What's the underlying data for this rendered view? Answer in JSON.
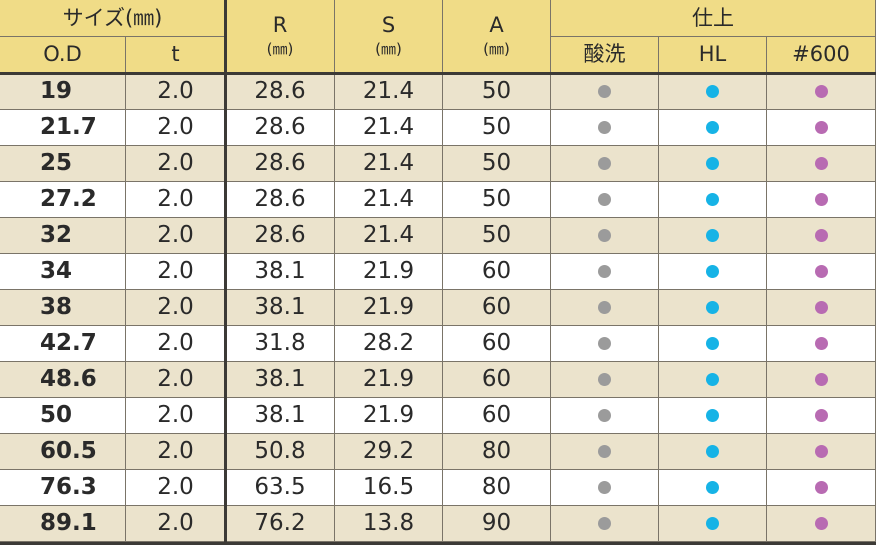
{
  "header": {
    "size_group": "サイズ(㎜)",
    "od": "O.D",
    "t": "t",
    "r": "R",
    "s": "S",
    "a": "A",
    "unit": "(㎜)",
    "finish_group": "仕上",
    "finish_acid": "酸洗",
    "finish_hl": "HL",
    "finish_600": "#600"
  },
  "colors": {
    "header_bg": "#f0dc87",
    "row_alt_bg": "#ebe3cc",
    "dot_acid": "#9b9b9b",
    "dot_hl": "#16b3e6",
    "dot_600": "#b86bb2"
  },
  "dot_icons": [
    "gray-dot-icon",
    "cyan-dot-icon",
    "purple-dot-icon"
  ],
  "rows": [
    {
      "od": "19",
      "t": "2.0",
      "r": "28.6",
      "s": "21.4",
      "a": "50"
    },
    {
      "od": "21.7",
      "t": "2.0",
      "r": "28.6",
      "s": "21.4",
      "a": "50"
    },
    {
      "od": "25",
      "t": "2.0",
      "r": "28.6",
      "s": "21.4",
      "a": "50"
    },
    {
      "od": "27.2",
      "t": "2.0",
      "r": "28.6",
      "s": "21.4",
      "a": "50"
    },
    {
      "od": "32",
      "t": "2.0",
      "r": "28.6",
      "s": "21.4",
      "a": "50"
    },
    {
      "od": "34",
      "t": "2.0",
      "r": "38.1",
      "s": "21.9",
      "a": "60"
    },
    {
      "od": "38",
      "t": "2.0",
      "r": "38.1",
      "s": "21.9",
      "a": "60"
    },
    {
      "od": "42.7",
      "t": "2.0",
      "r": "31.8",
      "s": "28.2",
      "a": "60"
    },
    {
      "od": "48.6",
      "t": "2.0",
      "r": "38.1",
      "s": "21.9",
      "a": "60"
    },
    {
      "od": "50",
      "t": "2.0",
      "r": "38.1",
      "s": "21.9",
      "a": "60"
    },
    {
      "od": "60.5",
      "t": "2.0",
      "r": "50.8",
      "s": "29.2",
      "a": "80"
    },
    {
      "od": "76.3",
      "t": "2.0",
      "r": "63.5",
      "s": "16.5",
      "a": "80"
    },
    {
      "od": "89.1",
      "t": "2.0",
      "r": "76.2",
      "s": "13.8",
      "a": "90"
    }
  ]
}
